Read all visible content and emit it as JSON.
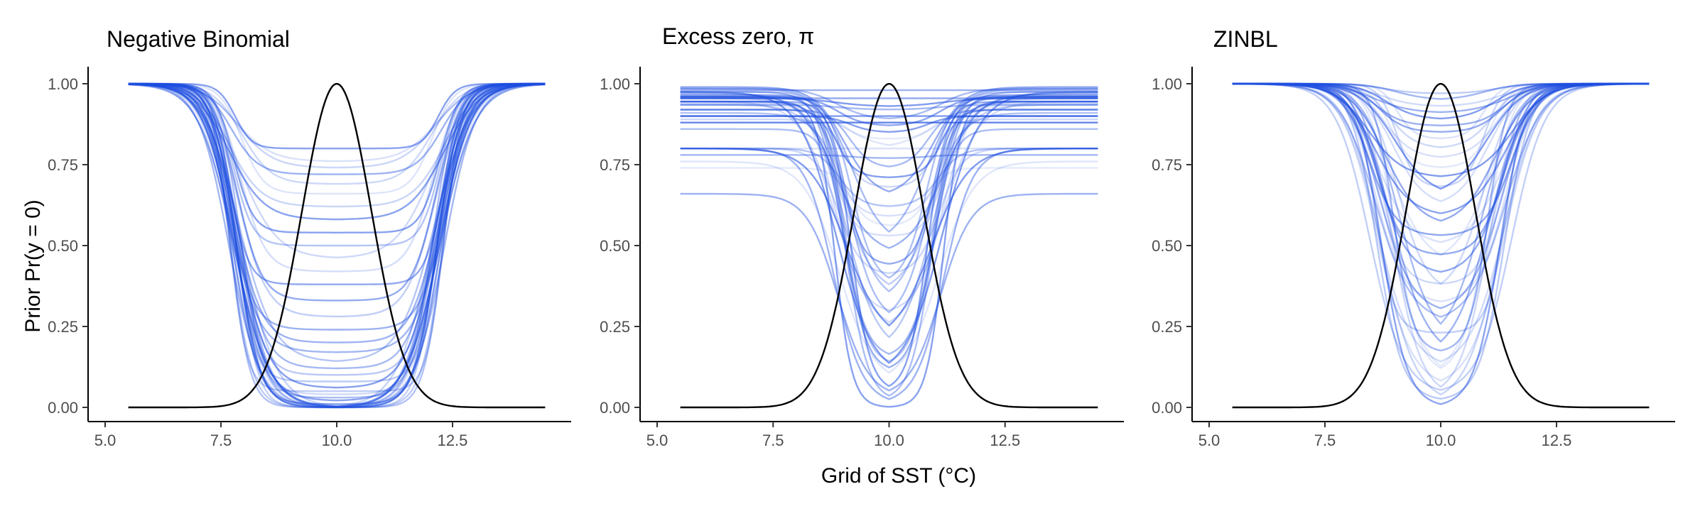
{
  "figure": {
    "ylabel": "Prior Pr(y = 0)",
    "xlabel": "Grid of SST (°C)"
  },
  "colors": {
    "prior_curves": "#1f4fe0",
    "density_curve": "#000000"
  },
  "chart_data": [
    {
      "type": "line",
      "title": "Negative Binomial",
      "xlim": [
        5.0,
        15.0
      ],
      "ylim": [
        0.0,
        1.0
      ],
      "xticks": [
        5.0,
        7.5,
        10.0,
        12.5
      ],
      "xtick_labels": [
        "5.0",
        "7.5",
        "10.0",
        "12.5"
      ],
      "yticks": [
        0.0,
        0.25,
        0.5,
        0.75,
        1.0
      ],
      "ytick_labels": [
        "0.00",
        "0.25",
        "0.50",
        "0.75",
        "1.00"
      ],
      "x_range": [
        5.5,
        14.5
      ],
      "reference_curve": {
        "center": 10.0,
        "sd": 0.75,
        "peak": 1.0
      },
      "prior_curve_family": {
        "count": 40,
        "center": 10.0,
        "asymptote": [
          1.0
        ],
        "min_values": [
          0.0,
          0.0,
          0.0,
          0.0,
          0.0,
          0.0,
          0.0,
          0.0,
          0.0,
          0.0,
          0.0,
          0.0,
          0.01,
          0.02,
          0.03,
          0.04,
          0.05,
          0.06,
          0.08,
          0.1,
          0.12,
          0.14,
          0.17,
          0.2,
          0.24,
          0.28,
          0.33,
          0.38,
          0.42,
          0.46,
          0.5,
          0.54,
          0.58,
          0.62,
          0.66,
          0.69,
          0.72,
          0.74,
          0.76,
          0.8
        ],
        "half_drop_x_offset": [
          2.05,
          2.35
        ]
      }
    },
    {
      "type": "line",
      "title": "Excess zero, π",
      "xlim": [
        5.0,
        15.0
      ],
      "ylim": [
        0.0,
        1.0
      ],
      "xticks": [
        5.0,
        7.5,
        10.0,
        12.5
      ],
      "xtick_labels": [
        "5.0",
        "7.5",
        "10.0",
        "12.5"
      ],
      "yticks": [
        0.0,
        0.25,
        0.5,
        0.75,
        1.0
      ],
      "ytick_labels": [
        "0.00",
        "0.25",
        "0.50",
        "0.75",
        "1.00"
      ],
      "x_range": [
        5.5,
        14.5
      ],
      "reference_curve": {
        "center": 10.0,
        "sd": 0.75,
        "peak": 1.0
      },
      "prior_curve_family": {
        "count": 44,
        "center": 10.0,
        "asymptote": [
          0.64,
          0.66,
          0.74,
          0.76,
          0.78,
          0.8,
          0.84,
          0.86,
          0.87,
          0.88,
          0.89,
          0.9,
          0.91,
          0.92,
          0.93,
          0.935,
          0.94,
          0.945,
          0.95,
          0.955,
          0.96,
          0.965,
          0.97,
          0.975,
          0.98,
          0.985,
          0.99
        ],
        "min_values": [
          0.0,
          0.01,
          0.02,
          0.03,
          0.05,
          0.07,
          0.09,
          0.11,
          0.13,
          0.15,
          0.17,
          0.2,
          0.23,
          0.26,
          0.29,
          0.32,
          0.35,
          0.38,
          0.41,
          0.44,
          0.47,
          0.5,
          0.53,
          0.56,
          0.59,
          0.62,
          0.65,
          0.68,
          0.71,
          0.74,
          0.77,
          0.8,
          0.83,
          0.85,
          0.87,
          0.89,
          0.91,
          0.92,
          0.93,
          0.94,
          0.95,
          0.96,
          0.97,
          0.98
        ],
        "half_drop_x_offset": [
          0.8,
          1.2
        ]
      }
    },
    {
      "type": "line",
      "title": "ZINBL",
      "xlim": [
        5.0,
        15.0
      ],
      "ylim": [
        0.0,
        1.0
      ],
      "xticks": [
        5.0,
        7.5,
        10.0,
        12.5
      ],
      "xtick_labels": [
        "5.0",
        "7.5",
        "10.0",
        "12.5"
      ],
      "yticks": [
        0.0,
        0.25,
        0.5,
        0.75,
        1.0
      ],
      "ytick_labels": [
        "0.00",
        "0.25",
        "0.50",
        "0.75",
        "1.00"
      ],
      "x_range": [
        5.5,
        14.5
      ],
      "reference_curve": {
        "center": 10.0,
        "sd": 0.75,
        "peak": 1.0
      },
      "prior_curve_family": {
        "count": 40,
        "center": 10.0,
        "asymptote": [
          1.0
        ],
        "min_values": [
          0.0,
          0.01,
          0.02,
          0.03,
          0.04,
          0.06,
          0.08,
          0.1,
          0.12,
          0.15,
          0.17,
          0.2,
          0.23,
          0.26,
          0.29,
          0.32,
          0.35,
          0.38,
          0.41,
          0.44,
          0.47,
          0.5,
          0.53,
          0.56,
          0.59,
          0.62,
          0.65,
          0.68,
          0.71,
          0.74,
          0.77,
          0.8,
          0.83,
          0.85,
          0.87,
          0.89,
          0.91,
          0.93,
          0.95,
          0.97
        ],
        "half_drop_x_offset": [
          0.9,
          1.6
        ]
      }
    }
  ]
}
